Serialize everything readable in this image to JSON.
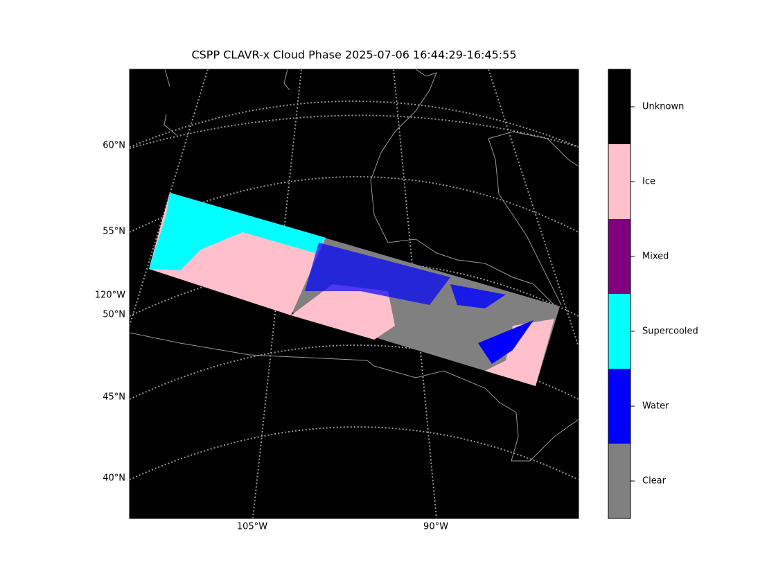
{
  "title": "CSPP CLAVR-x Cloud Phase 2025-07-06 16:44:29-16:45:55",
  "map": {
    "lat_labels": [
      "60°N",
      "55°N",
      "50°N",
      "45°N",
      "40°N"
    ],
    "lon_labels": [
      "120°W",
      "105°W",
      "90°W"
    ]
  },
  "colorbar": {
    "classes": [
      {
        "label": "Unknown",
        "color": "#000000"
      },
      {
        "label": "Ice",
        "color": "#ffc0cb"
      },
      {
        "label": "Mixed",
        "color": "#800080"
      },
      {
        "label": "Supercooled",
        "color": "#00ffff"
      },
      {
        "label": "Water",
        "color": "#0000ff"
      },
      {
        "label": "Clear",
        "color": "#808080"
      }
    ]
  }
}
